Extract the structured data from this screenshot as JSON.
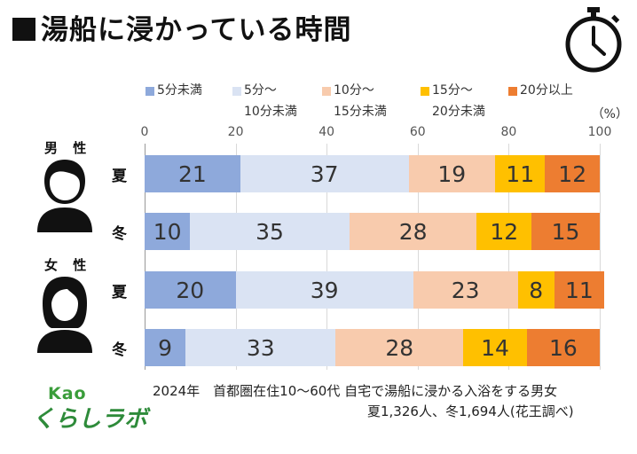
{
  "title": "湯船に浸かっている時間",
  "chart_data": {
    "type": "bar",
    "orientation": "horizontal-stacked",
    "title": "湯船に浸かっている時間",
    "unit": "（%）",
    "xlim": [
      0,
      100
    ],
    "ticks": [
      "0",
      "20",
      "40",
      "60",
      "80",
      "100"
    ],
    "legend": [
      {
        "line1": "5分未満",
        "line2": "",
        "color": "#8ea9db"
      },
      {
        "line1": "5分～",
        "line2": "10分未満",
        "color": "#dae3f3"
      },
      {
        "line1": "10分～",
        "line2": "15分未満",
        "color": "#f8cbad"
      },
      {
        "line1": "15分～",
        "line2": "20分未満",
        "color": "#ffc000"
      },
      {
        "line1": "20分以上",
        "line2": "",
        "color": "#ed7d31"
      }
    ],
    "groups": [
      {
        "name": "男 性",
        "rows": [
          {
            "label": "夏",
            "values": [
              21,
              37,
              19,
              11,
              12
            ]
          },
          {
            "label": "冬",
            "values": [
              10,
              35,
              28,
              12,
              15
            ]
          }
        ]
      },
      {
        "name": "女 性",
        "rows": [
          {
            "label": "夏",
            "values": [
              20,
              39,
              23,
              8,
              11
            ]
          },
          {
            "label": "冬",
            "values": [
              9,
              33,
              28,
              14,
              16
            ]
          }
        ]
      }
    ]
  },
  "note": {
    "line1": "2024年　首都圏在住10～60代 自宅で湯船に浸かる入浴をする男女",
    "line2": "夏1,326人、冬1,694人(花王調べ)"
  },
  "logo": {
    "brand": "Kao",
    "name": "くらしラボ"
  }
}
